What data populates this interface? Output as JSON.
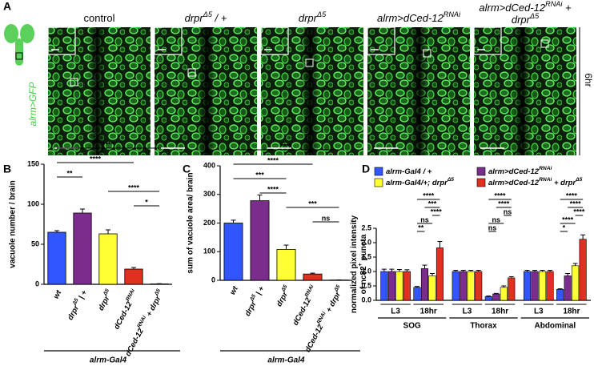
{
  "panel_a": {
    "label": "A",
    "columns": [
      [
        [
          "control"
        ]
      ],
      [
        [
          "drpr",
          "Δ5",
          " / +"
        ]
      ],
      [
        [
          "drpr",
          "Δ5"
        ]
      ],
      [
        [
          "alrm>dCed-12",
          "RNAi"
        ]
      ],
      [
        [
          "alrm>dCed-12",
          "RNAi",
          " +"
        ],
        [
          "drpr",
          "Δ5"
        ]
      ]
    ],
    "side_label": "alrm>GFP",
    "time": "6hr"
  },
  "chart_data": [
    {
      "type": "bar",
      "panel": "B",
      "ylabel": "vacuole number / brain",
      "xlabel": "alrm-Gal4",
      "categories": [
        [
          "wt"
        ],
        [
          "drpr",
          "Δ5",
          " | +"
        ],
        [
          "drpr",
          "Δ5"
        ],
        [
          "dCed-12",
          "RNAi"
        ],
        [
          "dCed-12",
          "RNAi",
          " + drpr",
          "Δ5"
        ]
      ],
      "values": [
        65,
        89,
        63,
        19,
        0.5
      ],
      "errors": [
        2,
        5,
        5,
        2,
        0.3
      ],
      "colors": [
        "#3355ff",
        "#7b2d8e",
        "#ffff33",
        "#e03020",
        "#ffffff"
      ],
      "ylim": [
        0,
        150
      ],
      "yticks": [
        0,
        50,
        100,
        150
      ],
      "brackets": [
        {
          "label": "****",
          "from": 0,
          "to": 4
        },
        {
          "label": "****",
          "from": 0,
          "to": 3
        },
        {
          "label": "**",
          "from": 0,
          "to": 1
        },
        {
          "label": "****",
          "from": 2,
          "to": 4
        },
        {
          "label": "*",
          "from": 3,
          "to": 4
        }
      ]
    },
    {
      "type": "bar",
      "panel": "C",
      "ylabel": "sum of vacuole area/ brain",
      "xlabel": "alrm-Gal4",
      "categories": [
        [
          "wt"
        ],
        [
          "drpr",
          "Δ5",
          " | +"
        ],
        [
          "drpr",
          "Δ5"
        ],
        [
          "dCed-12",
          "RNAi"
        ],
        [
          "dCed-12",
          "RNAi",
          " + drpr",
          "Δ5"
        ]
      ],
      "values": [
        200,
        278,
        108,
        22,
        1
      ],
      "errors": [
        10,
        20,
        15,
        3,
        0.5
      ],
      "colors": [
        "#3355ff",
        "#7b2d8e",
        "#ffff33",
        "#e03020",
        "#ffffff"
      ],
      "ylim": [
        0,
        400
      ],
      "yticks": [
        0,
        100,
        200,
        300,
        400
      ],
      "brackets": [
        {
          "label": "****",
          "from": 0,
          "to": 4
        },
        {
          "label": "****",
          "from": 0,
          "to": 3
        },
        {
          "label": "***",
          "from": 0,
          "to": 2
        },
        {
          "label": "****",
          "from": 1,
          "to": 2
        },
        {
          "label": "***",
          "from": 2,
          "to": 4
        },
        {
          "label": "ns",
          "from": 3,
          "to": 4
        }
      ]
    },
    {
      "type": "grouped_bar",
      "panel": "D",
      "ylabel": [
        [
          "normalized pixel intensity"
        ],
        [
          "of nc82",
          "+",
          " puncta"
        ]
      ],
      "categories": [
        "L3",
        "18hr",
        "L3",
        "18hr",
        "L3",
        "18hr"
      ],
      "groups": [
        "SOG",
        "Thorax",
        "Abdominal"
      ],
      "series": [
        {
          "name": [
            "alrm-Gal4 / +"
          ],
          "color": "#3355ff",
          "values": [
            1.0,
            0.45,
            1.0,
            0.13,
            1.0,
            0.38
          ],
          "errors": [
            0.08,
            0.03,
            0.04,
            0.02,
            0.04,
            0.02
          ]
        },
        {
          "name": [
            "alrm>dCed-12",
            "RNAi"
          ],
          "color": "#7b2d8e",
          "values": [
            1.0,
            1.1,
            1.0,
            0.22,
            1.0,
            0.85
          ],
          "errors": [
            0.08,
            0.12,
            0.04,
            0.02,
            0.04,
            0.08
          ]
        },
        {
          "name": [
            "alrm-Gal4/+; drpr",
            "Δ5"
          ],
          "color": "#ffff33",
          "values": [
            1.0,
            0.85,
            1.0,
            0.45,
            1.0,
            1.2
          ],
          "errors": [
            0.07,
            0.08,
            0.04,
            0.05,
            0.04,
            0.08
          ]
        },
        {
          "name": [
            "alrm>dCed-12",
            "RNAi",
            " + drpr",
            "Δ5"
          ],
          "color": "#e03020",
          "values": [
            1.0,
            1.82,
            1.0,
            0.78,
            1.0,
            2.12
          ],
          "errors": [
            0.06,
            0.22,
            0.04,
            0.04,
            0.04,
            0.15
          ]
        }
      ],
      "ylim": [
        0,
        2.5
      ],
      "yticks": [
        {
          "value": 0,
          "label": "0.0"
        },
        {
          "value": 0.5,
          "label": "0.5"
        },
        {
          "value": 1,
          "label": "1.0"
        },
        {
          "value": 1.5,
          "label": "1.5"
        },
        {
          "value": 2,
          "label": "2.0"
        },
        {
          "value": 2.5,
          "label": "2.5"
        }
      ],
      "brackets": [
        {
          "label": "****",
          "category": 1,
          "from": 0,
          "to": 3
        },
        {
          "label": "***",
          "category": 1,
          "from": 1,
          "to": 3
        },
        {
          "label": "****",
          "category": 1,
          "from": 2,
          "to": 3
        },
        {
          "label": "ns",
          "category": 1,
          "from": 0,
          "to": 2
        },
        {
          "label": "**",
          "category": 1,
          "from": 0,
          "to": 1
        },
        {
          "label": "****",
          "category": 3,
          "from": 0,
          "to": 3
        },
        {
          "label": "****",
          "category": 3,
          "from": 1,
          "to": 3
        },
        {
          "label": "ns",
          "category": 3,
          "from": 2,
          "to": 3
        },
        {
          "label": "ns",
          "category": 3,
          "from": 0,
          "to": 2
        },
        {
          "label": "ns",
          "category": 3,
          "from": 0,
          "to": 1
        },
        {
          "label": "****",
          "category": 5,
          "from": 0,
          "to": 3
        },
        {
          "label": "****",
          "category": 5,
          "from": 1,
          "to": 3
        },
        {
          "label": "****",
          "category": 5,
          "from": 2,
          "to": 3
        },
        {
          "label": "****",
          "category": 5,
          "from": 0,
          "to": 2
        },
        {
          "label": "*",
          "category": 5,
          "from": 0,
          "to": 1
        }
      ]
    }
  ]
}
